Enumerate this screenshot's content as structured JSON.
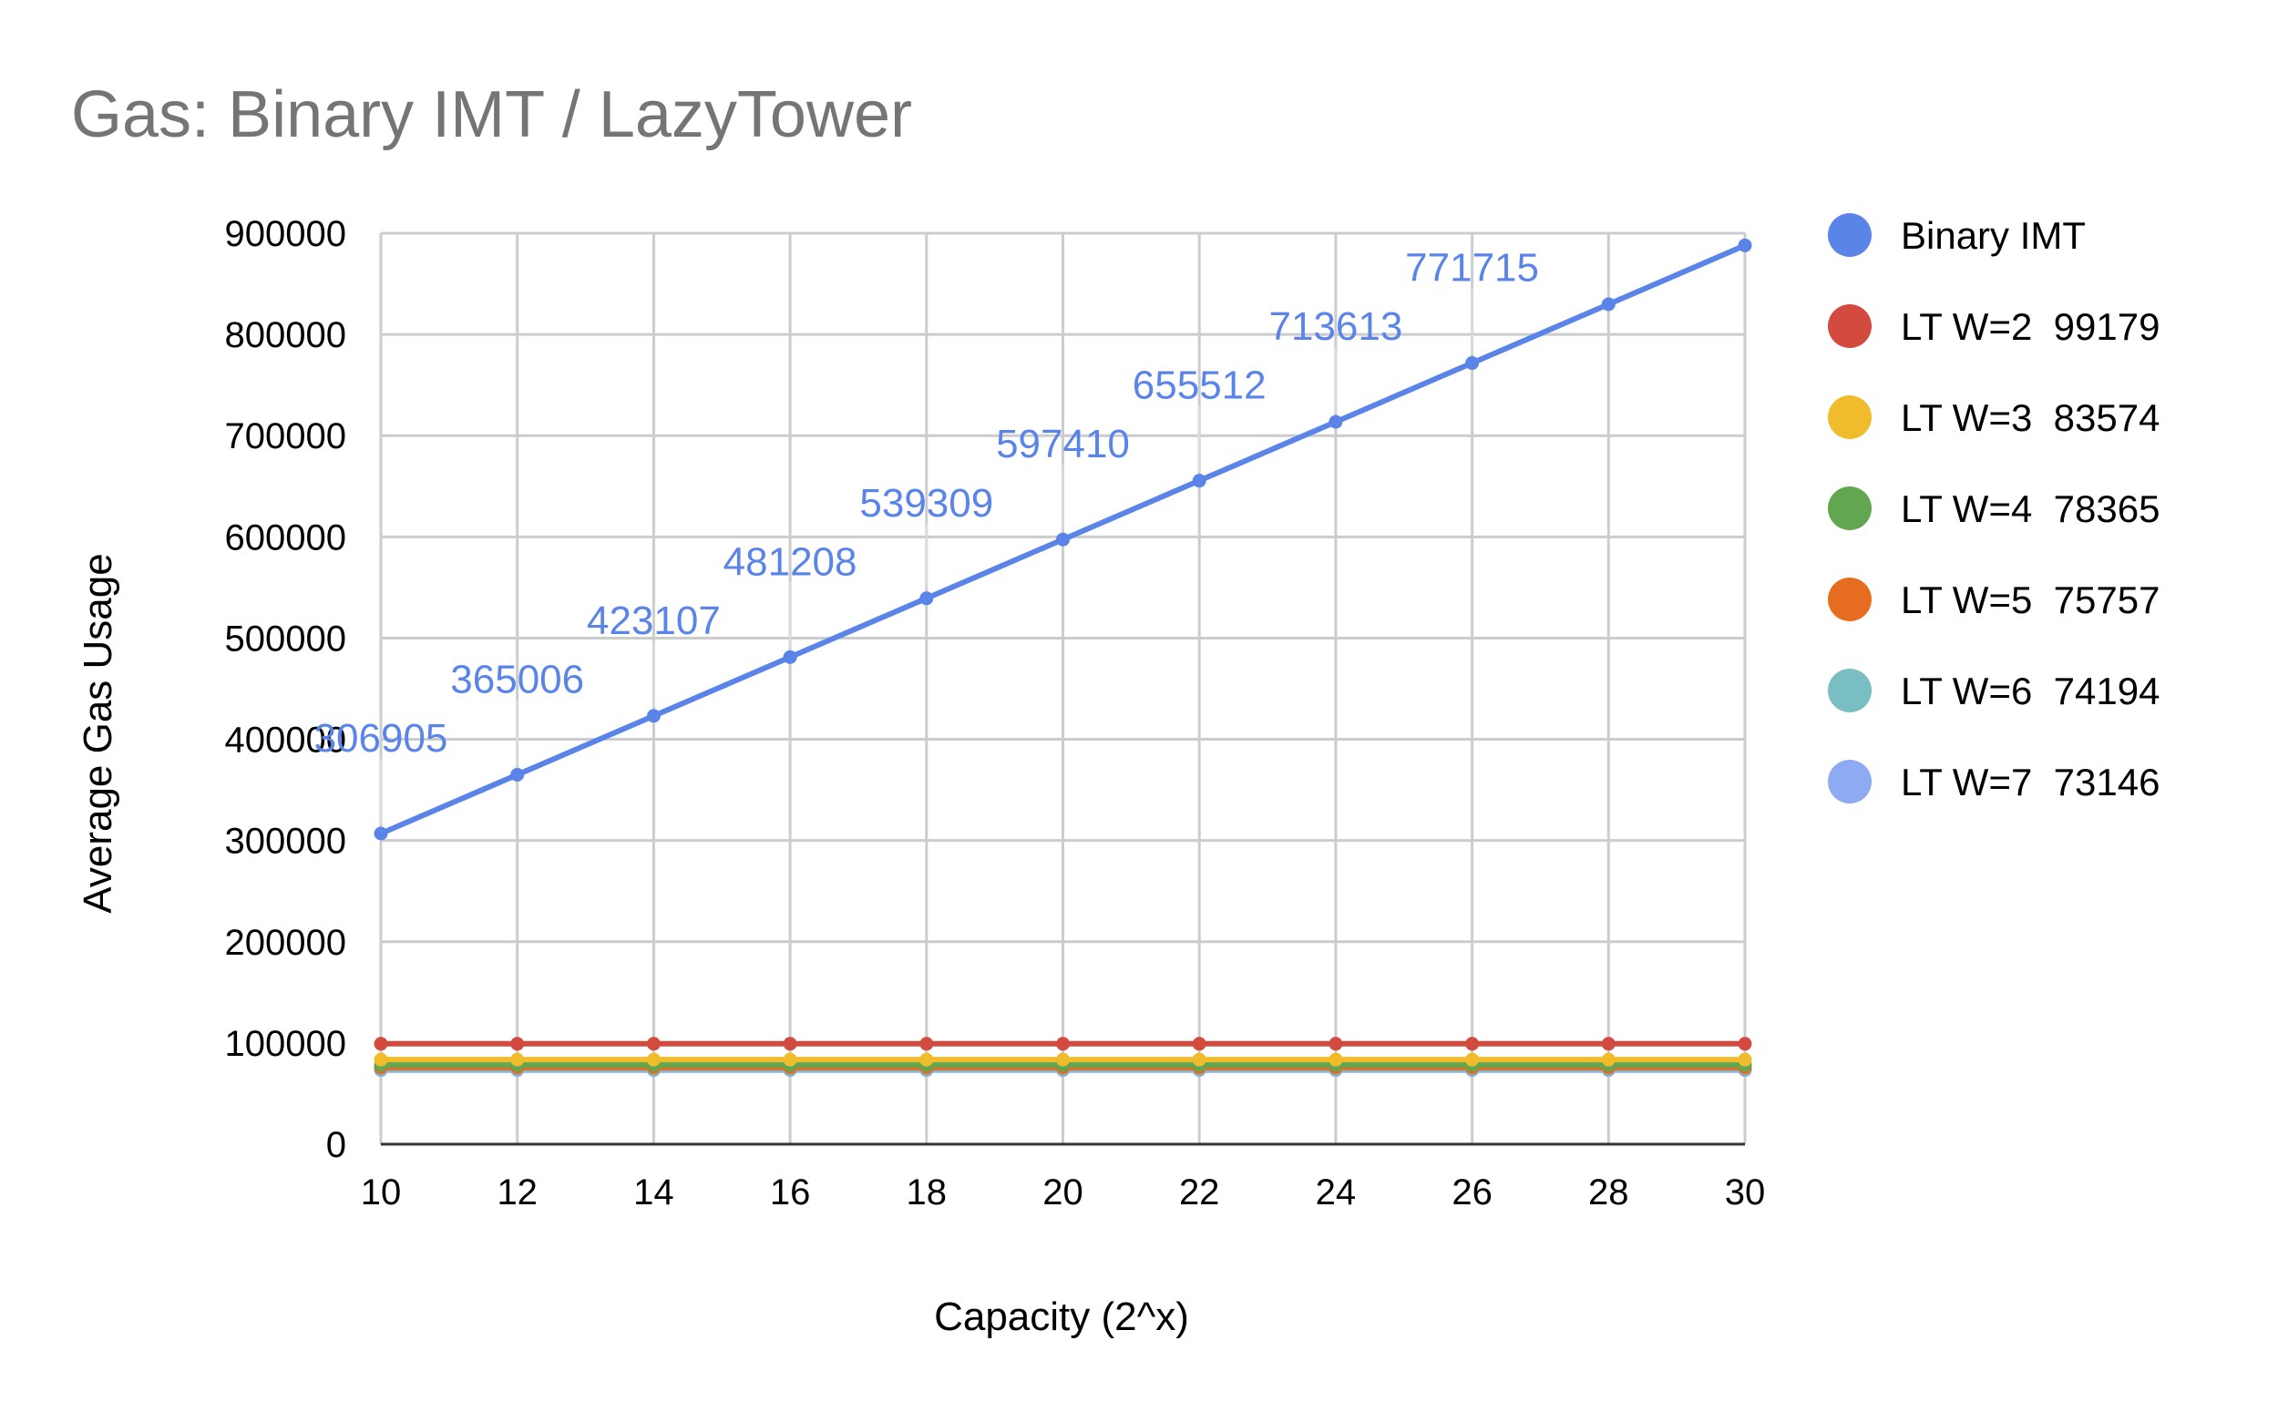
{
  "chart_data": {
    "type": "line",
    "title": "Gas: Binary IMT / LazyTower",
    "xlabel": "Capacity (2^x)",
    "ylabel": "Average Gas Usage",
    "x": [
      10,
      12,
      14,
      16,
      18,
      20,
      22,
      24,
      26,
      28,
      30
    ],
    "xlim": [
      10,
      30
    ],
    "ylim": [
      0,
      900000
    ],
    "x_ticks": [
      "10",
      "12",
      "14",
      "16",
      "18",
      "20",
      "22",
      "24",
      "26",
      "28",
      "30"
    ],
    "y_ticks": [
      "0",
      "100000",
      "200000",
      "300000",
      "400000",
      "500000",
      "600000",
      "700000",
      "800000",
      "900000"
    ],
    "grid": true,
    "legend_position": "right",
    "series": [
      {
        "name": "Binary IMT",
        "color": "#5b84e9",
        "values": [
          306905,
          365006,
          423107,
          481208,
          539309,
          597410,
          655512,
          713613,
          771715,
          829816,
          887917
        ],
        "data_labels": [
          "306905",
          "365006",
          "423107",
          "481208",
          "539309",
          "597410",
          "655512",
          "713613",
          "771715",
          null,
          null
        ]
      },
      {
        "name": "LT W=2  99179",
        "color": "#d34a3e",
        "values": [
          99179,
          99179,
          99179,
          99179,
          99179,
          99179,
          99179,
          99179,
          99179,
          99179,
          99179
        ]
      },
      {
        "name": "LT W=3  83574",
        "color": "#f0bc2c",
        "values": [
          83574,
          83574,
          83574,
          83574,
          83574,
          83574,
          83574,
          83574,
          83574,
          83574,
          83574
        ]
      },
      {
        "name": "LT W=4  78365",
        "color": "#63a650",
        "values": [
          78365,
          78365,
          78365,
          78365,
          78365,
          78365,
          78365,
          78365,
          78365,
          78365,
          78365
        ]
      },
      {
        "name": "LT W=5  75757",
        "color": "#e66d1f",
        "values": [
          75757,
          75757,
          75757,
          75757,
          75757,
          75757,
          75757,
          75757,
          75757,
          75757,
          75757
        ]
      },
      {
        "name": "LT W=6  74194",
        "color": "#78bec2",
        "values": [
          74194,
          74194,
          74194,
          74194,
          74194,
          74194,
          74194,
          74194,
          74194,
          74194,
          74194
        ]
      },
      {
        "name": "LT W=7  73146",
        "color": "#8eaaf3",
        "values": [
          73146,
          73146,
          73146,
          73146,
          73146,
          73146,
          73146,
          73146,
          73146,
          73146,
          73146
        ]
      }
    ]
  }
}
